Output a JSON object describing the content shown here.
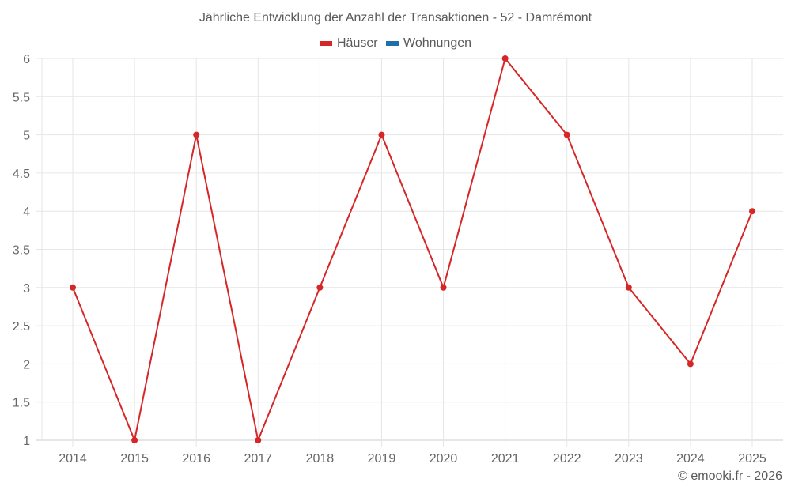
{
  "title": "Jährliche Entwicklung der Anzahl der Transaktionen - 52 - Damrémont",
  "legend": [
    {
      "label": "Häuser",
      "color": "#d62728"
    },
    {
      "label": "Wohnungen",
      "color": "#1f6fa8"
    }
  ],
  "footer": "© emooki.fr - 2026",
  "chart_data": {
    "type": "line",
    "title": "Jährliche Entwicklung der Anzahl der Transaktionen - 52 - Damrémont",
    "xlabel": "",
    "ylabel": "",
    "categories": [
      "2014",
      "2015",
      "2016",
      "2017",
      "2018",
      "2019",
      "2020",
      "2021",
      "2022",
      "2023",
      "2024",
      "2025"
    ],
    "series": [
      {
        "name": "Häuser",
        "color": "#d62728",
        "values": [
          3,
          1,
          5,
          1,
          3,
          5,
          3,
          6,
          5,
          3,
          2,
          4
        ]
      },
      {
        "name": "Wohnungen",
        "color": "#1f6fa8",
        "values": []
      }
    ],
    "ylim": [
      1,
      6
    ],
    "yticks": [
      "1",
      "1.5",
      "2",
      "2.5",
      "3",
      "3.5",
      "4",
      "4.5",
      "5",
      "5.5",
      "6"
    ],
    "grid": true,
    "legend_position": "top"
  }
}
